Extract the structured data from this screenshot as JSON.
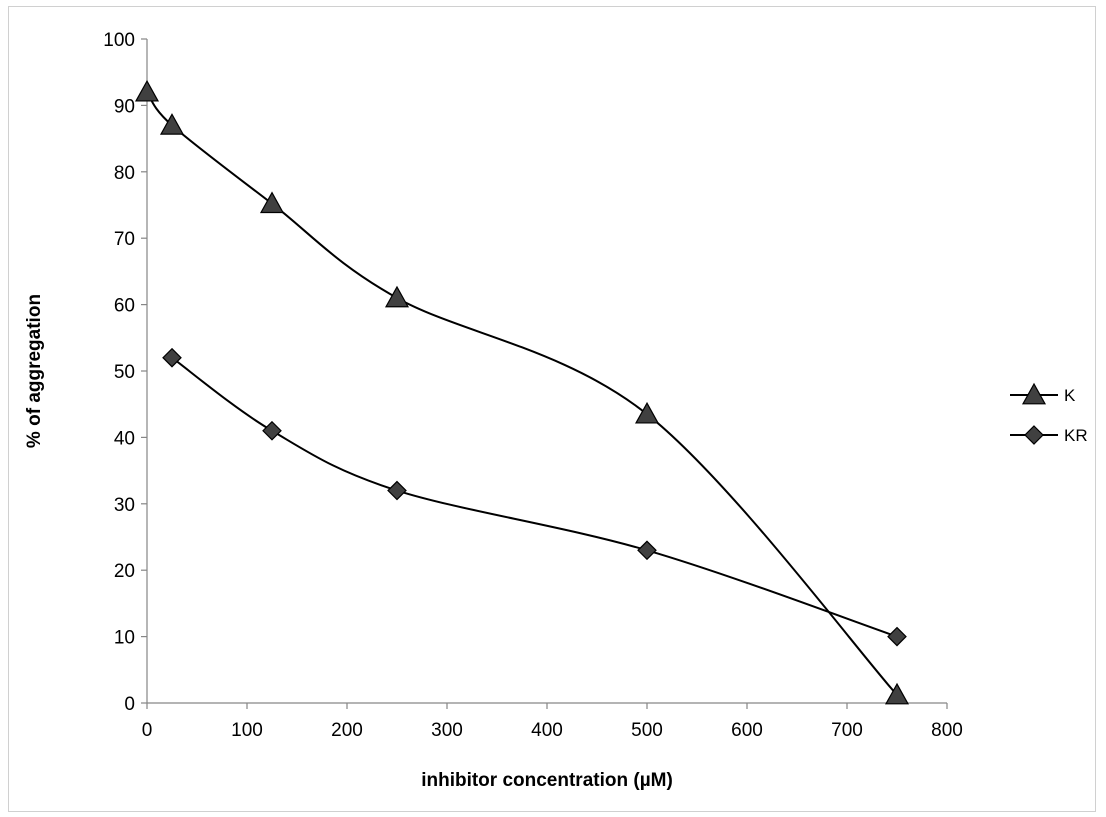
{
  "chart_data": {
    "type": "line",
    "title": "",
    "xlabel": "inhibitor concentration (µM)",
    "ylabel": "% of aggregation",
    "xlim": [
      0,
      800
    ],
    "ylim": [
      0,
      100
    ],
    "xticks": [
      0,
      100,
      200,
      300,
      400,
      500,
      600,
      700,
      800
    ],
    "yticks": [
      0,
      10,
      20,
      30,
      40,
      50,
      60,
      70,
      80,
      90,
      100
    ],
    "grid": false,
    "smooth": true,
    "legend_position": "right",
    "series": [
      {
        "name": "K",
        "marker": "triangle",
        "color": "#404040",
        "x": [
          0,
          25,
          125,
          250,
          500,
          750
        ],
        "y": [
          92,
          87,
          75.2,
          61,
          43.5,
          1.2
        ]
      },
      {
        "name": "KR",
        "marker": "diamond",
        "color": "#404040",
        "x": [
          25,
          125,
          250,
          500,
          750
        ],
        "y": [
          52,
          41,
          32,
          23,
          10
        ]
      }
    ]
  }
}
